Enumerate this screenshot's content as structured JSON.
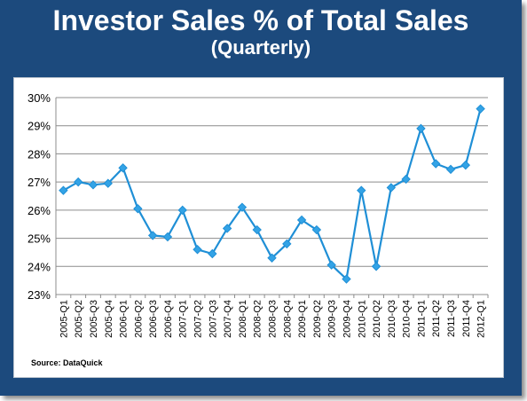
{
  "header": {
    "title": "Investor Sales % of Total Sales",
    "subtitle": "(Quarterly)"
  },
  "source": "Source: DataQuick",
  "colors": {
    "frame": "#1c4a7d",
    "line": "#1f8fd6",
    "marker": "#33a3e6"
  },
  "chart_data": {
    "type": "line",
    "title": "Investor Sales % of Total Sales",
    "subtitle": "(Quarterly)",
    "xlabel": "",
    "ylabel": "",
    "ylim": [
      23,
      30
    ],
    "yticks": [
      "23%",
      "24%",
      "25%",
      "26%",
      "27%",
      "28%",
      "29%",
      "30%"
    ],
    "grid": true,
    "legend": "none",
    "categories": [
      "2005-Q1",
      "2005-Q2",
      "2005-Q3",
      "2005-Q4",
      "2006-Q1",
      "2006-Q2",
      "2006-Q3",
      "2006-Q4",
      "2007-Q1",
      "2007-Q2",
      "2007-Q3",
      "2007-Q4",
      "2008-Q1",
      "2008-Q2",
      "2008-Q3",
      "2008-Q4",
      "2009-Q1",
      "2009-Q2",
      "2009-Q3",
      "2009-Q4",
      "2010-Q1",
      "2010-Q2",
      "2010-Q3",
      "2010-Q4",
      "2011-Q1",
      "2011-Q2",
      "2011-Q3",
      "2011-Q4",
      "2012-Q1"
    ],
    "series": [
      {
        "values": [
          26.7,
          27.0,
          26.9,
          26.95,
          27.5,
          26.05,
          25.1,
          25.05,
          26.0,
          24.6,
          24.45,
          25.35,
          26.1,
          25.3,
          24.3,
          24.8,
          25.65,
          25.3,
          24.05,
          23.55,
          26.7,
          24.0,
          26.8,
          27.1,
          28.9,
          27.65,
          27.45,
          27.6,
          29.6
        ]
      }
    ]
  }
}
